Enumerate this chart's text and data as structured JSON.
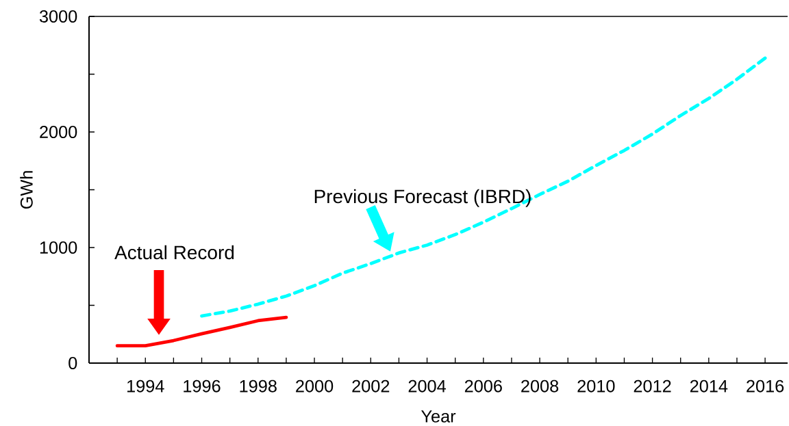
{
  "chart_data": {
    "type": "line",
    "xlabel": "Year",
    "ylabel": "GWh",
    "xlim": [
      1992,
      2016.8
    ],
    "ylim": [
      0,
      3000
    ],
    "xticks": [
      {
        "value": 1993,
        "label": null
      },
      1994,
      {
        "value": 1995,
        "label": null
      },
      1996,
      {
        "value": 1997,
        "label": null
      },
      1998,
      {
        "value": 1999,
        "label": null
      },
      2000,
      {
        "value": 2001,
        "label": null
      },
      2002,
      {
        "value": 2003,
        "label": null
      },
      2004,
      {
        "value": 2005,
        "label": null
      },
      2006,
      {
        "value": 2007,
        "label": null
      },
      2008,
      {
        "value": 2009,
        "label": null
      },
      2010,
      {
        "value": 2011,
        "label": null
      },
      2012,
      {
        "value": 2013,
        "label": null
      },
      2014,
      {
        "value": 2015,
        "label": null
      },
      2016
    ],
    "yticks": [
      0,
      {
        "value": 500,
        "label": null
      },
      1000,
      {
        "value": 1500,
        "label": null
      },
      2000,
      {
        "value": 2500,
        "label": null
      },
      3000
    ],
    "grid": false,
    "marker": "none",
    "series": [
      {
        "color": "#ff0000",
        "line_style": "solid",
        "x": [
          1993,
          1994,
          1995,
          1996,
          1997,
          1998,
          1999
        ],
        "values": [
          150,
          150,
          195,
          254,
          308,
          367,
          396
        ]
      },
      {
        "color": "#00ffff",
        "line_style": "dashed",
        "x": [
          1996,
          1997,
          1998,
          1999,
          2000,
          2001,
          2002,
          2003,
          2004,
          2005,
          2006,
          2007,
          2008,
          2009,
          2010,
          2011,
          2012,
          2013,
          2014,
          2015,
          2016
        ],
        "values": [
          408,
          450,
          510,
          580,
          670,
          778,
          861,
          953,
          1021,
          1112,
          1219,
          1337,
          1459,
          1574,
          1710,
          1840,
          1982,
          2142,
          2290,
          2456,
          2639
        ]
      }
    ],
    "annotations": [
      "Actual Record",
      "Previous Forecast (IBRD)"
    ]
  }
}
